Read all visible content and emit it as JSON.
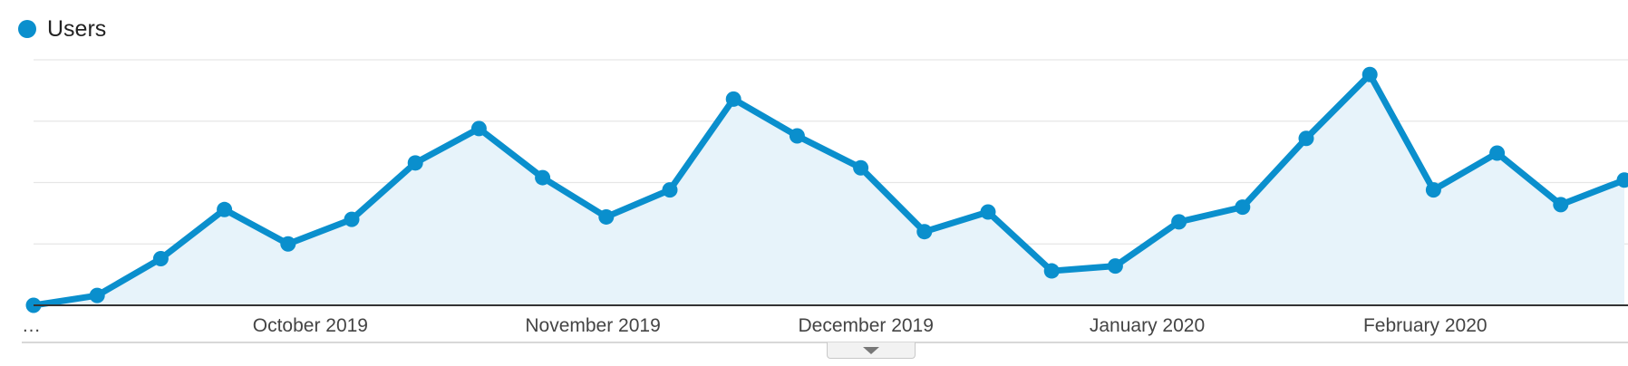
{
  "legend": {
    "label": "Users",
    "color": "#0a8fcd"
  },
  "colors": {
    "line": "#0a8fcd",
    "fill": "#e7f3fa",
    "grid": "#e6e6e6",
    "baseline": "#333333"
  },
  "collapse_control": {
    "icon": "caret-down-icon"
  },
  "chart_data": {
    "type": "area",
    "x": [
      "…",
      "",
      "",
      "",
      "",
      "",
      "",
      "",
      "",
      "",
      "",
      "",
      "",
      "",
      "",
      "",
      "",
      "",
      "",
      "",
      "",
      "",
      "",
      "",
      "",
      ""
    ],
    "series": [
      {
        "name": "Users",
        "values": [
          0,
          4,
          19,
          39,
          25,
          35,
          58,
          72,
          52,
          36,
          47,
          84,
          69,
          56,
          30,
          38,
          14,
          16,
          34,
          40,
          68,
          94,
          47,
          62,
          41,
          51
        ]
      }
    ],
    "xticklabels": [
      "…",
      "October 2019",
      "November 2019",
      "December 2019",
      "January 2020",
      "February 2020"
    ],
    "xtick_index": [
      0,
      4.35,
      8.79,
      13.08,
      17.5,
      21.87
    ],
    "ylim": [
      0,
      100
    ],
    "grid": true,
    "legend_position": "top-left",
    "clipped_right": true
  }
}
